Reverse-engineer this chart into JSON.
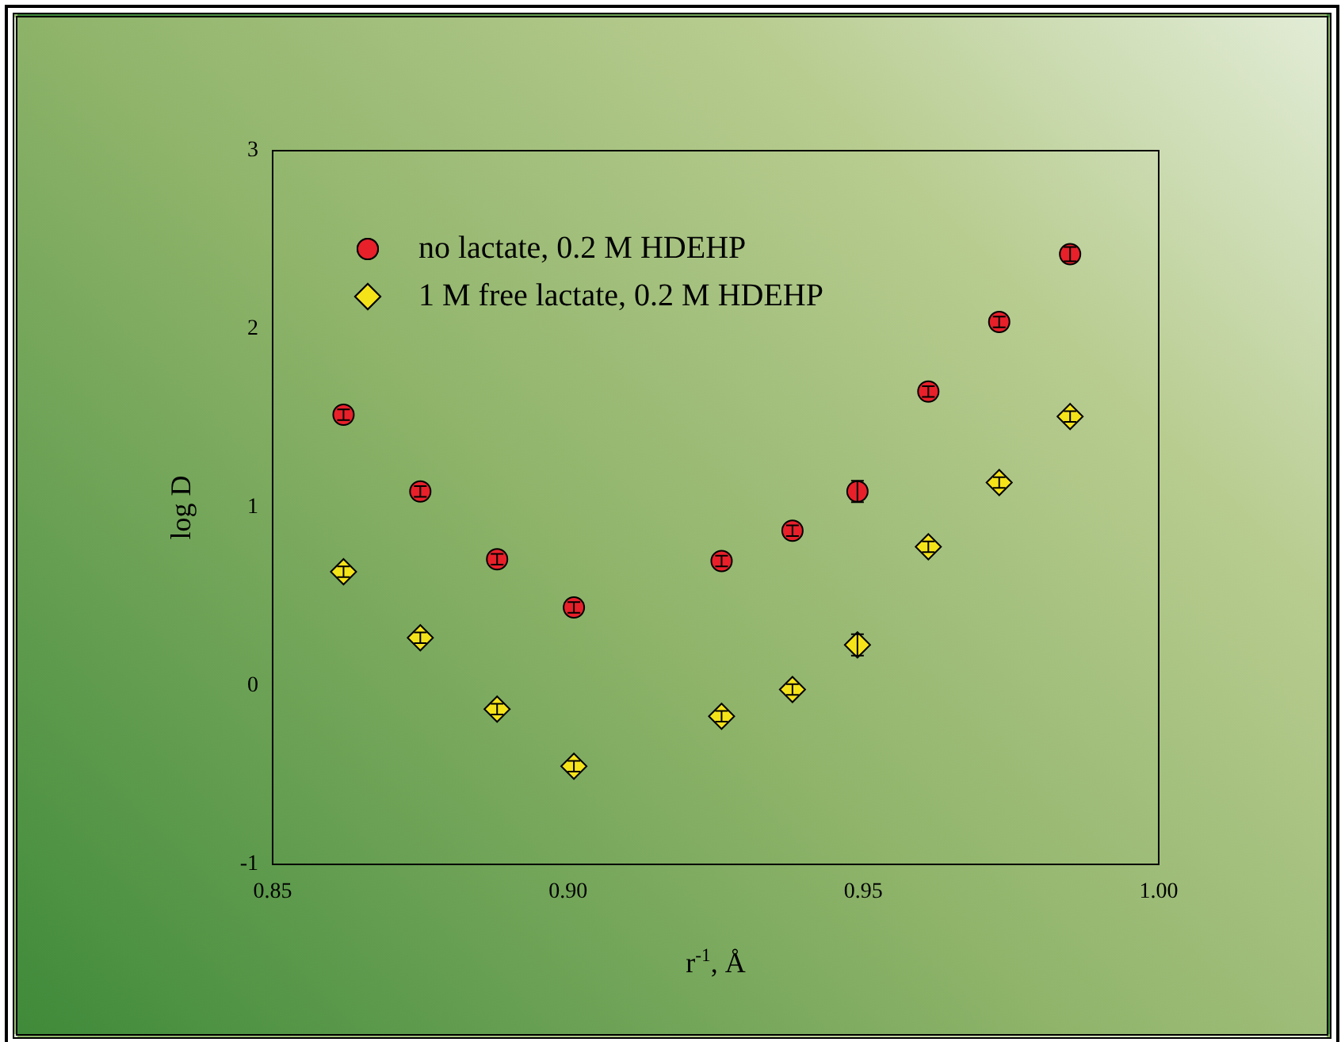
{
  "chart_data": {
    "type": "scatter",
    "xlabel": "r$^{-1}$, Å",
    "ylabel": "log D",
    "xlim": [
      0.85,
      1.0
    ],
    "xticks": [
      {
        "value": 0.85,
        "label": "0.85"
      },
      {
        "value": 0.9,
        "label": "0.90"
      },
      {
        "value": 0.95,
        "label": "0.95"
      },
      {
        "value": 1.0,
        "label": "1.00"
      }
    ],
    "ylim": [
      -1,
      3
    ],
    "yticks": [
      -1,
      0,
      1,
      2,
      3
    ],
    "grid": false,
    "legend": "top left",
    "series": [
      {
        "name": "no lactate, 0.2 M HDEHP",
        "color": "#e8202a",
        "marker": "circle",
        "x": [
          0.862,
          0.875,
          0.888,
          0.901,
          0.926,
          0.938,
          0.949,
          0.961,
          0.973,
          0.985
        ],
        "values": [
          1.52,
          1.09,
          0.71,
          0.44,
          0.7,
          0.87,
          1.09,
          1.65,
          2.04,
          2.42
        ],
        "errors": [
          0.03,
          0.03,
          0.03,
          0.03,
          0.03,
          0.03,
          0.06,
          0.03,
          0.03,
          0.04
        ]
      },
      {
        "name": "1 M free lactate, 0.2 M HDEHP",
        "color": "#f5e31a",
        "marker": "diamond",
        "x": [
          0.862,
          0.875,
          0.888,
          0.901,
          0.926,
          0.938,
          0.949,
          0.961,
          0.973,
          0.985
        ],
        "values": [
          0.64,
          0.27,
          -0.13,
          -0.45,
          -0.17,
          -0.02,
          0.23,
          0.78,
          1.14,
          1.51
        ],
        "errors": [
          0.03,
          0.03,
          0.03,
          0.03,
          0.03,
          0.03,
          0.06,
          0.03,
          0.03,
          0.03
        ]
      }
    ]
  }
}
